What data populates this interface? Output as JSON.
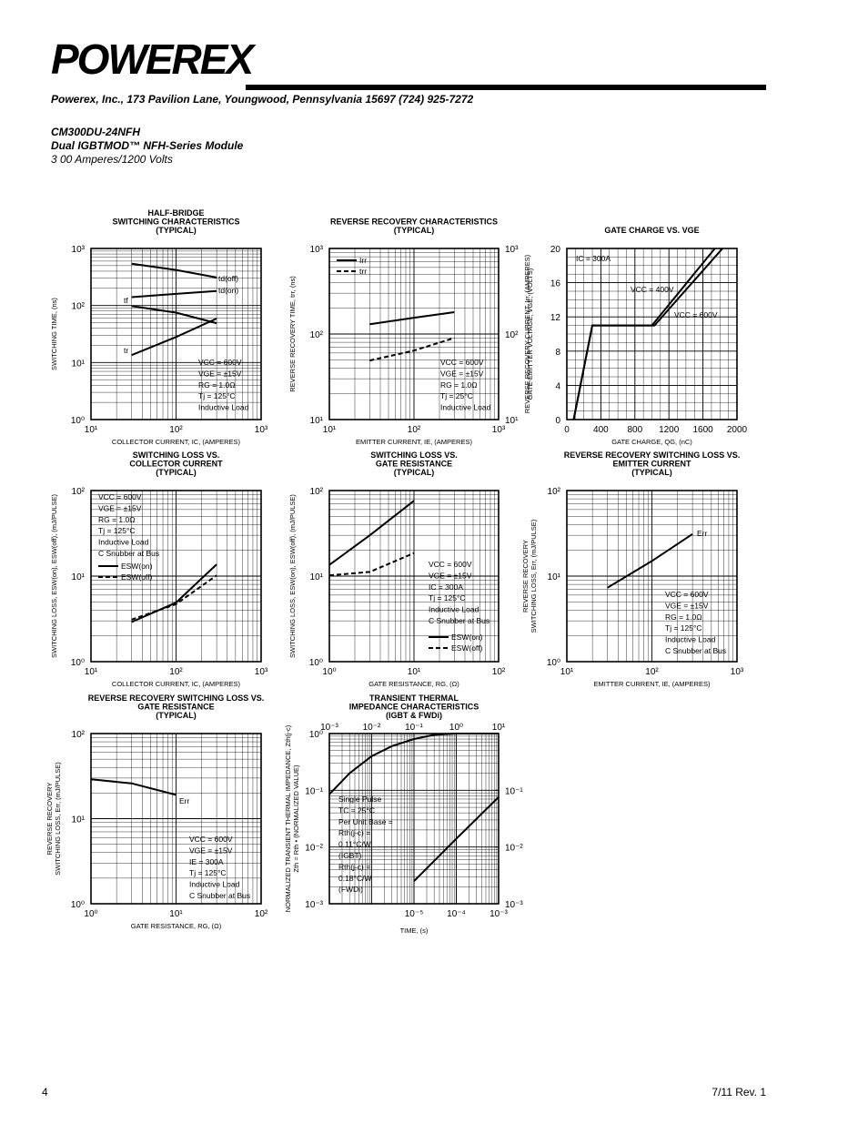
{
  "header": {
    "company": "POWEREX",
    "address": "Powerex, Inc., 173 Pavilion Lane, Youngwood, Pennsylvania  15697 (724) 925-7272",
    "part": "CM300DU-24NFH",
    "module": "Dual IGBTMOD™ NFH-Series Module",
    "rating": "3 00 Amperes/1200 Volts"
  },
  "footer": {
    "page": "4",
    "revision": "7/11 Rev. 1"
  },
  "chart_data": [
    {
      "type": "line",
      "title": [
        "HALF-BRIDGE",
        "SWITCHING CHARACTERISTICS",
        "(TYPICAL)"
      ],
      "xlabel": "COLLECTOR CURRENT, IC, (AMPERES)",
      "ylabel": [
        "SWITCHING TIME, (ns)"
      ],
      "xlog": true,
      "ylog": true,
      "grid": true,
      "xlim": [
        10,
        1000
      ],
      "xticks": [
        {
          "value": 10,
          "label": "10¹"
        },
        {
          "value": 100,
          "label": "10²"
        },
        {
          "value": 1000,
          "label": "10³"
        }
      ],
      "ylim": [
        1,
        1000
      ],
      "yticks": [
        {
          "value": 1,
          "label": "10⁰"
        },
        {
          "value": 10,
          "label": "10¹"
        },
        {
          "value": 100,
          "label": "10²"
        },
        {
          "value": 1000,
          "label": "10³"
        }
      ],
      "series": [
        {
          "name": "td(off)",
          "color": "#000000",
          "x": [
            30,
            100,
            300
          ],
          "values": [
            540,
            420,
            310
          ]
        },
        {
          "name": "td(on)",
          "color": "#000000",
          "x": [
            30,
            100,
            300
          ],
          "values": [
            140,
            160,
            180
          ]
        },
        {
          "name": "tf",
          "color": "#000000",
          "x": [
            30,
            100,
            300
          ],
          "values": [
            98,
            75,
            49
          ]
        },
        {
          "name": "tr",
          "color": "#000000",
          "x": [
            30,
            100,
            300
          ],
          "values": [
            13.5,
            28,
            59
          ]
        }
      ],
      "annotations": [
        "VCC = 600V",
        "VGE = ±15V",
        "RG = 1.0Ω",
        "Tj = 125°C",
        "Inductive Load"
      ]
    },
    {
      "type": "line",
      "title": [
        "REVERSE RECOVERY CHARACTERISTICS",
        "(TYPICAL)"
      ],
      "xlabel": "EMITTER CURRENT, IE, (AMPERES)",
      "ylabel": [
        "REVERSE RECOVERY TIME, trr, (ns)"
      ],
      "y2label": [
        "REVERSE RECOVERY CURRENT, Irr, (AMPERES)"
      ],
      "xlog": true,
      "ylog": true,
      "grid": true,
      "legend": "upper left",
      "xlim": [
        10,
        1000
      ],
      "xticks": [
        {
          "value": 10,
          "label": "10¹"
        },
        {
          "value": 100,
          "label": "10²"
        },
        {
          "value": 1000,
          "label": "10³"
        }
      ],
      "ylim": [
        10,
        1000
      ],
      "yticks": [
        {
          "value": 10,
          "label": "10¹"
        },
        {
          "value": 100,
          "label": "10²"
        },
        {
          "value": 1000,
          "label": "10³"
        }
      ],
      "y2lim": [
        10,
        1000
      ],
      "y2ticks": [
        {
          "value": 10,
          "label": "10¹"
        },
        {
          "value": 100,
          "label": "10²"
        },
        {
          "value": 1000,
          "label": "10³"
        }
      ],
      "series": [
        {
          "name": "Irr",
          "color": "#000000",
          "axis": "y2",
          "x": [
            30,
            100,
            300
          ],
          "values": [
            130,
            155,
            180
          ]
        },
        {
          "name": "trr",
          "color": "#000000",
          "dash": true,
          "x": [
            30,
            100,
            300
          ],
          "values": [
            49,
            64,
            90
          ]
        }
      ],
      "annotations": [
        "VCC = 600V",
        "VGE = ±15V",
        "RG = 1.0Ω",
        "Tj = 25°C",
        "Inductive Load"
      ]
    },
    {
      "type": "line",
      "title": [
        "GATE CHARGE VS. VGE"
      ],
      "xlabel": "GATE CHARGE, QG, (nC)",
      "ylabel": [
        "GATE-EMITTER VOLTAGE, VGE, (VOLTS)"
      ],
      "xlog": false,
      "ylog": false,
      "grid": true,
      "xlim": [
        0,
        2000
      ],
      "xticks": [
        0,
        400,
        800,
        1200,
        1600,
        2000
      ],
      "ylim": [
        0,
        20
      ],
      "yticks": [
        0,
        4,
        8,
        12,
        16,
        20
      ],
      "series": [
        {
          "name": "VCC = 400V",
          "color": "#000000",
          "x": [
            80,
            300,
            1000,
            1740
          ],
          "values": [
            0,
            11,
            11,
            20
          ]
        },
        {
          "name": "VCC = 600V",
          "color": "#000000",
          "x": [
            80,
            300,
            1030,
            1830
          ],
          "values": [
            0,
            11,
            11,
            20
          ]
        }
      ],
      "annotations": [
        "IC = 300A"
      ]
    },
    {
      "type": "line",
      "title": [
        "SWITCHING LOSS VS.",
        "COLLECTOR CURRENT",
        "(TYPICAL)"
      ],
      "xlabel": "COLLECTOR CURRENT, IC, (AMPERES)",
      "ylabel": [
        "SWITCHING LOSS, ESW(on), ESW(off), (mJ/PULSE)"
      ],
      "xlog": true,
      "ylog": true,
      "grid": true,
      "legend": "upper left",
      "xlim": [
        10,
        1000
      ],
      "xticks": [
        {
          "value": 10,
          "label": "10¹"
        },
        {
          "value": 100,
          "label": "10²"
        },
        {
          "value": 1000,
          "label": "10³"
        }
      ],
      "ylim": [
        1,
        100
      ],
      "yticks": [
        {
          "value": 1,
          "label": "10⁰"
        },
        {
          "value": 10,
          "label": "10¹"
        },
        {
          "value": 100,
          "label": "10²"
        }
      ],
      "series": [
        {
          "name": "ESW(on)",
          "color": "#000000",
          "x": [
            30,
            100,
            300
          ],
          "values": [
            2.9,
            4.9,
            13.7
          ]
        },
        {
          "name": "ESW(off)",
          "color": "#000000",
          "dash": true,
          "x": [
            30,
            100,
            300
          ],
          "values": [
            3.1,
            4.7,
            10.2
          ]
        }
      ],
      "annotations": [
        "VCC = 600V",
        "VGE = ±15V",
        "RG = 1.0Ω",
        "Tj = 125°C",
        "Inductive Load",
        "C Snubber at Bus"
      ]
    },
    {
      "type": "line",
      "title": [
        "SWITCHING LOSS VS.",
        "GATE RESISTANCE",
        "(TYPICAL)"
      ],
      "xlabel": "GATE RESISTANCE, RG, (Ω)",
      "ylabel": [
        "SWITCHING LOSS, ESW(on), ESW(off), (mJ/PULSE)"
      ],
      "xlog": true,
      "ylog": true,
      "grid": true,
      "legend": "lower right",
      "xlim": [
        1,
        100
      ],
      "xticks": [
        {
          "value": 1,
          "label": "10⁰"
        },
        {
          "value": 10,
          "label": "10¹"
        },
        {
          "value": 100,
          "label": "10²"
        }
      ],
      "ylim": [
        1,
        100
      ],
      "yticks": [
        {
          "value": 1,
          "label": "10⁰"
        },
        {
          "value": 10,
          "label": "10¹"
        },
        {
          "value": 100,
          "label": "10²"
        }
      ],
      "series": [
        {
          "name": "ESW(on)",
          "color": "#000000",
          "x": [
            1,
            3,
            10
          ],
          "values": [
            13.5,
            30,
            76
          ]
        },
        {
          "name": "ESW(off)",
          "color": "#000000",
          "dash": true,
          "x": [
            1,
            3,
            10
          ],
          "values": [
            10.2,
            11.2,
            18.6
          ]
        }
      ],
      "annotations": [
        "VCC = 600V",
        "VGE = ±15V",
        "IC = 300A",
        "Tj = 125°C",
        "Inductive Load",
        "C Snubber at Bus"
      ]
    },
    {
      "type": "line",
      "title": [
        "REVERSE RECOVERY SWITCHING LOSS VS.",
        "EMITTER CURRENT",
        "(TYPICAL)"
      ],
      "xlabel": "EMITTER CURRENT, IE, (AMPERES)",
      "ylabel": [
        "REVERSE RECOVERY",
        "SWITCHING LOSS, Err, (mJ/PULSE)"
      ],
      "xlog": true,
      "ylog": true,
      "grid": true,
      "xlim": [
        10,
        1000
      ],
      "xticks": [
        {
          "value": 10,
          "label": "10¹"
        },
        {
          "value": 100,
          "label": "10²"
        },
        {
          "value": 1000,
          "label": "10³"
        }
      ],
      "ylim": [
        1,
        100
      ],
      "yticks": [
        {
          "value": 1,
          "label": "10⁰"
        },
        {
          "value": 10,
          "label": "10¹"
        },
        {
          "value": 100,
          "label": "10²"
        }
      ],
      "series": [
        {
          "name": "Err",
          "color": "#000000",
          "x": [
            30,
            100,
            300
          ],
          "values": [
            7.3,
            15,
            31
          ]
        }
      ],
      "annotations": [
        "VCC = 600V",
        "VGE = ±15V",
        "RG = 1.0Ω",
        "Tj = 125°C",
        "Inductive Load",
        "C Snubber at Bus"
      ]
    },
    {
      "type": "line",
      "title": [
        "REVERSE RECOVERY SWITCHING LOSS VS.",
        "GATE RESISTANCE",
        "(TYPICAL)"
      ],
      "xlabel": "GATE RESISTANCE, RG, (Ω)",
      "ylabel": [
        "REVERSE RECOVERY",
        "SWITCHING LOSS, Err, (mJ/PULSE)"
      ],
      "xlog": true,
      "ylog": true,
      "grid": true,
      "xlim": [
        1,
        100
      ],
      "xticks": [
        {
          "value": 1,
          "label": "10⁰"
        },
        {
          "value": 10,
          "label": "10¹"
        },
        {
          "value": 100,
          "label": "10²"
        }
      ],
      "ylim": [
        1,
        100
      ],
      "yticks": [
        {
          "value": 1,
          "label": "10⁰"
        },
        {
          "value": 10,
          "label": "10¹"
        },
        {
          "value": 100,
          "label": "10²"
        }
      ],
      "series": [
        {
          "name": "Err",
          "color": "#000000",
          "x": [
            1,
            3,
            10
          ],
          "values": [
            29,
            26,
            19
          ]
        }
      ],
      "annotations": [
        "VCC = 600V",
        "VGE = ±15V",
        "IE = 300A",
        "Tj = 125°C",
        "Inductive Load",
        "C Snubber at Bus"
      ]
    },
    {
      "type": "line",
      "title": [
        "TRANSIENT THERMAL",
        "IMPEDANCE CHARACTERISTICS",
        "(IGBT & FWDi)"
      ],
      "xlabel": "TIME, (s)",
      "ylabel": [
        "NORMALIZED TRANSIENT THERMAL IMPEDANCE, Zth(j-c)",
        "Zth = Rth • (NORMALIZED VALUE)"
      ],
      "xlog": true,
      "ylog": true,
      "grid": true,
      "xlim": [
        0.001,
        10
      ],
      "xticks": [
        {
          "value": 0.001,
          "label": "10⁻³"
        },
        {
          "value": 0.01,
          "label": "10⁻²"
        },
        {
          "value": 0.1,
          "label": "10⁻¹"
        },
        {
          "value": 1,
          "label": "10⁰"
        },
        {
          "value": 10,
          "label": "10¹"
        }
      ],
      "x2lim": [
        1e-07,
        0.001
      ],
      "x2ticks": [
        {
          "value": 1e-05,
          "label": "10⁻⁵"
        },
        {
          "value": 0.0001,
          "label": "10⁻⁴"
        },
        {
          "value": 0.001,
          "label": "10⁻³"
        }
      ],
      "ylim": [
        0.001,
        1
      ],
      "yticks": [
        {
          "value": 0.001,
          "label": "10⁻³"
        },
        {
          "value": 0.01,
          "label": "10⁻²"
        },
        {
          "value": 0.1,
          "label": "10⁻¹"
        },
        {
          "value": 1,
          "label": "10⁰"
        }
      ],
      "y2lim": [
        0.001,
        1
      ],
      "y2ticks": [
        {
          "value": 0.001,
          "label": "10⁻³"
        },
        {
          "value": 0.01,
          "label": "10⁻²"
        },
        {
          "value": 0.1,
          "label": "10⁻¹"
        }
      ],
      "series": [
        {
          "color": "#000000",
          "x": [
            0.001,
            0.003,
            0.01,
            0.03,
            0.1,
            0.3,
            1,
            10
          ],
          "values": [
            0.085,
            0.2,
            0.4,
            0.6,
            0.8,
            0.95,
            1,
            1
          ]
        },
        {
          "color": "#000000",
          "axis": "y2",
          "xaxis": "x2",
          "x": [
            1e-05,
            0.0001,
            0.001
          ],
          "values": [
            0.0025,
            0.014,
            0.076
          ]
        }
      ],
      "annotations": [
        "Single Pulse",
        "TC = 25°C",
        "Per Unit Base =",
        "Rth(j-c) =",
        "   0.11°C/W",
        "   (IGBT)",
        "Rth(j-c) =",
        "   0.18°C/W",
        "   (FWDi)"
      ]
    }
  ]
}
